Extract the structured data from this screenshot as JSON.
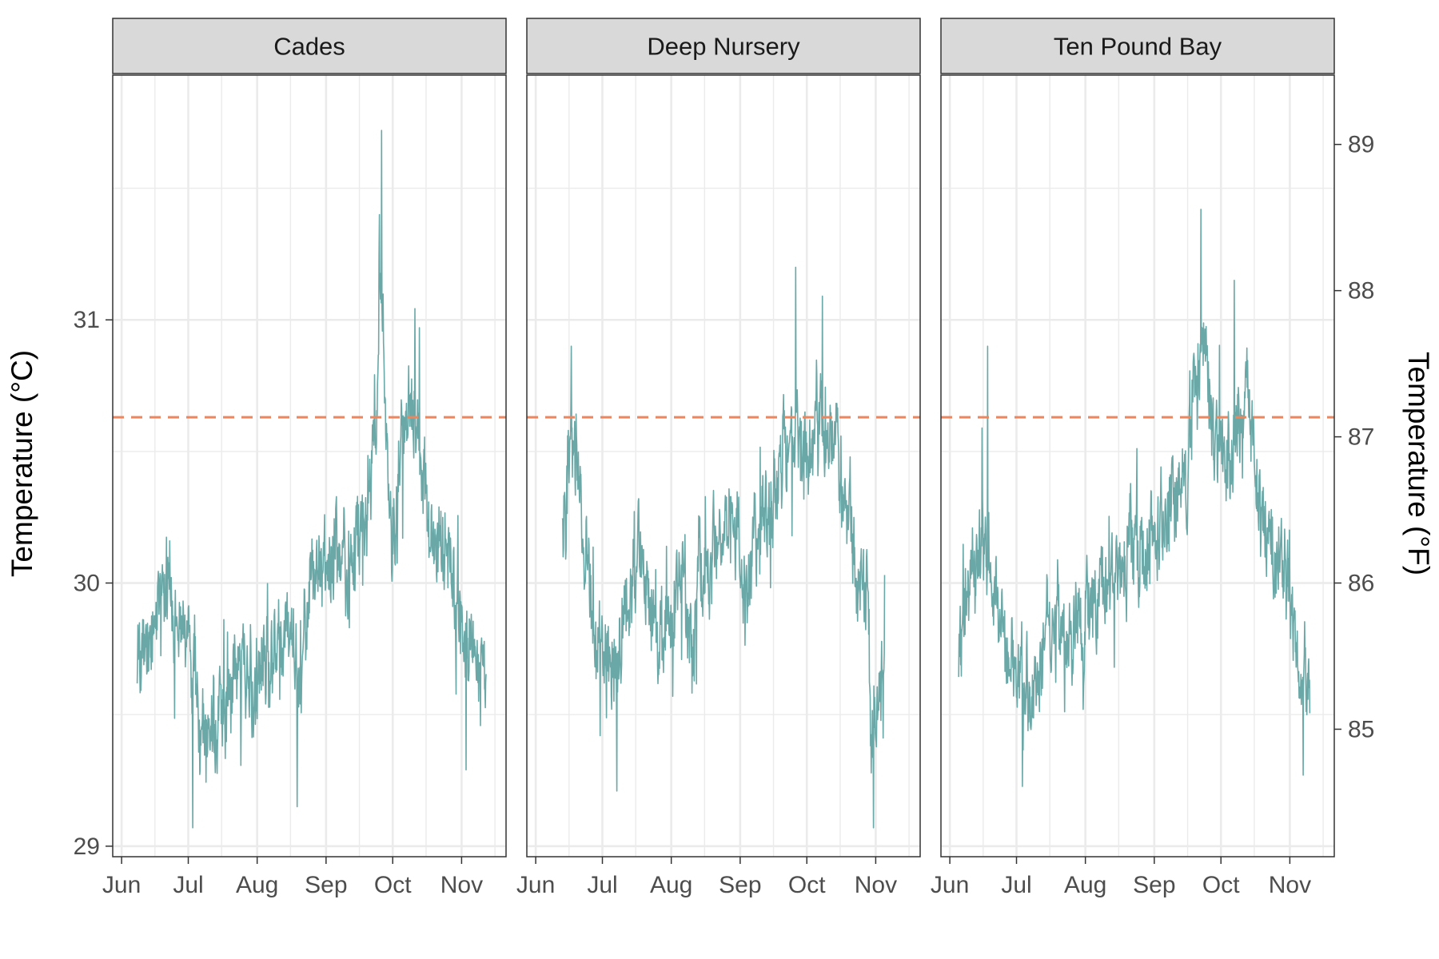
{
  "chart_data": {
    "type": "line",
    "facet_by": "site",
    "panels": [
      {
        "name": "Cades",
        "anchors": [
          [
            "2019-06-08",
            29.75
          ],
          [
            "2019-06-12",
            29.75
          ],
          [
            "2019-06-17",
            29.95
          ],
          [
            "2019-06-22",
            30.05
          ],
          [
            "2019-06-26",
            29.82
          ],
          [
            "2019-06-30",
            29.78
          ],
          [
            "2019-07-03",
            29.7
          ],
          [
            "2019-07-07",
            29.38
          ],
          [
            "2019-07-12",
            29.4
          ],
          [
            "2019-07-18",
            29.55
          ],
          [
            "2019-07-24",
            29.7
          ],
          [
            "2019-07-30",
            29.6
          ],
          [
            "2019-08-05",
            29.7
          ],
          [
            "2019-08-10",
            29.75
          ],
          [
            "2019-08-16",
            29.8
          ],
          [
            "2019-08-20",
            29.65
          ],
          [
            "2019-08-24",
            29.95
          ],
          [
            "2019-08-30",
            30.05
          ],
          [
            "2019-09-05",
            30.15
          ],
          [
            "2019-09-11",
            30.05
          ],
          [
            "2019-09-17",
            30.2
          ],
          [
            "2019-09-21",
            30.3
          ],
          [
            "2019-09-23",
            30.65
          ],
          [
            "2019-09-26",
            31.1
          ],
          [
            "2019-09-28",
            30.6
          ],
          [
            "2019-10-01",
            30.2
          ],
          [
            "2019-10-06",
            30.6
          ],
          [
            "2019-10-10",
            30.7
          ],
          [
            "2019-10-14",
            30.4
          ],
          [
            "2019-10-18",
            30.2
          ],
          [
            "2019-10-24",
            30.1
          ],
          [
            "2019-10-30",
            29.95
          ],
          [
            "2019-11-03",
            29.75
          ],
          [
            "2019-11-08",
            29.7
          ],
          [
            "2019-11-12",
            29.65
          ]
        ],
        "spikes": [
          [
            "2019-09-26",
            31.72
          ],
          [
            "2019-09-25",
            31.4
          ],
          [
            "2019-07-03",
            29.07
          ],
          [
            "2019-08-19",
            29.15
          ],
          [
            "2019-11-03",
            29.29
          ],
          [
            "2019-10-13",
            30.97
          ]
        ]
      },
      {
        "name": "Deep Nursery",
        "anchors": [
          [
            "2019-06-13",
            30.2
          ],
          [
            "2019-06-17",
            30.5
          ],
          [
            "2019-06-20",
            30.5
          ],
          [
            "2019-06-24",
            30.0
          ],
          [
            "2019-06-30",
            29.75
          ],
          [
            "2019-07-06",
            29.7
          ],
          [
            "2019-07-12",
            29.95
          ],
          [
            "2019-07-18",
            30.1
          ],
          [
            "2019-07-24",
            29.85
          ],
          [
            "2019-07-30",
            29.8
          ],
          [
            "2019-08-05",
            29.95
          ],
          [
            "2019-08-10",
            29.85
          ],
          [
            "2019-08-16",
            30.05
          ],
          [
            "2019-08-22",
            30.2
          ],
          [
            "2019-08-28",
            30.25
          ],
          [
            "2019-09-03",
            30.0
          ],
          [
            "2019-09-09",
            30.2
          ],
          [
            "2019-09-15",
            30.3
          ],
          [
            "2019-09-21",
            30.5
          ],
          [
            "2019-09-26",
            30.55
          ],
          [
            "2019-10-01",
            30.4
          ],
          [
            "2019-10-06",
            30.6
          ],
          [
            "2019-10-10",
            30.55
          ],
          [
            "2019-10-14",
            30.55
          ],
          [
            "2019-10-19",
            30.3
          ],
          [
            "2019-10-24",
            30.1
          ],
          [
            "2019-10-28",
            29.95
          ],
          [
            "2019-10-30",
            29.5
          ],
          [
            "2019-11-02",
            29.5
          ],
          [
            "2019-11-05",
            29.6
          ]
        ],
        "spikes": [
          [
            "2019-06-17",
            30.9
          ],
          [
            "2019-09-26",
            31.2
          ],
          [
            "2019-10-08",
            31.09
          ],
          [
            "2019-10-31",
            29.07
          ],
          [
            "2019-06-30",
            29.42
          ]
        ]
      },
      {
        "name": "Ten Pound Bay",
        "anchors": [
          [
            "2019-06-05",
            29.75
          ],
          [
            "2019-06-10",
            30.0
          ],
          [
            "2019-06-15",
            30.15
          ],
          [
            "2019-06-20",
            30.0
          ],
          [
            "2019-06-25",
            29.8
          ],
          [
            "2019-07-01",
            29.65
          ],
          [
            "2019-07-06",
            29.6
          ],
          [
            "2019-07-12",
            29.7
          ],
          [
            "2019-07-18",
            29.85
          ],
          [
            "2019-07-24",
            29.75
          ],
          [
            "2019-07-30",
            29.85
          ],
          [
            "2019-08-05",
            29.95
          ],
          [
            "2019-08-10",
            30.0
          ],
          [
            "2019-08-16",
            30.05
          ],
          [
            "2019-08-22",
            30.15
          ],
          [
            "2019-08-28",
            30.1
          ],
          [
            "2019-09-03",
            30.25
          ],
          [
            "2019-09-09",
            30.3
          ],
          [
            "2019-09-15",
            30.35
          ],
          [
            "2019-09-19",
            30.75
          ],
          [
            "2019-09-23",
            30.9
          ],
          [
            "2019-09-28",
            30.55
          ],
          [
            "2019-10-03",
            30.5
          ],
          [
            "2019-10-08",
            30.55
          ],
          [
            "2019-10-12",
            30.65
          ],
          [
            "2019-10-16",
            30.4
          ],
          [
            "2019-10-22",
            30.15
          ],
          [
            "2019-10-28",
            30.1
          ],
          [
            "2019-11-02",
            29.9
          ],
          [
            "2019-11-06",
            29.6
          ],
          [
            "2019-11-10",
            29.65
          ]
        ],
        "spikes": [
          [
            "2019-09-22",
            31.42
          ],
          [
            "2019-10-07",
            31.15
          ],
          [
            "2019-06-18",
            30.9
          ],
          [
            "2019-07-31",
            29.52
          ],
          [
            "2019-08-14",
            29.68
          ],
          [
            "2019-11-07",
            29.27
          ]
        ]
      }
    ],
    "threshold_c": 30.63,
    "y_primary": {
      "label": "Temperature (°C)",
      "ticks": [
        29,
        30,
        31
      ],
      "range": [
        28.96,
        31.93
      ]
    },
    "y_secondary": {
      "label": "Temperature (°F)",
      "ticks": [
        85,
        86,
        87,
        88,
        89
      ]
    },
    "x": {
      "range": [
        "2019-05-28",
        "2019-11-21"
      ],
      "ticks": [
        "2019-06-01",
        "2019-07-01",
        "2019-08-01",
        "2019-09-01",
        "2019-10-01",
        "2019-11-01"
      ],
      "tick_labels": [
        "Jun",
        "Jul",
        "Aug",
        "Sep",
        "Oct",
        "Nov"
      ]
    },
    "grid": true,
    "colors": {
      "series": "#6aa8a7",
      "threshold": "#f0845a"
    }
  }
}
